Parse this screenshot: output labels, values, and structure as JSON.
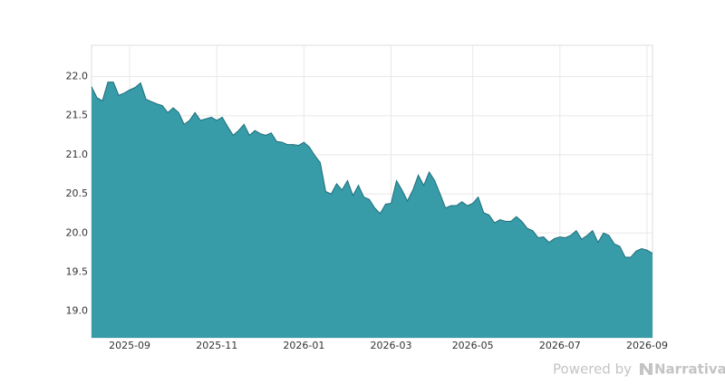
{
  "chart_data": {
    "type": "area",
    "categories": [
      null,
      null,
      null,
      null,
      null,
      null,
      null,
      "2025-09",
      null,
      null,
      null,
      null,
      null,
      null,
      null,
      null,
      null,
      null,
      null,
      null,
      null,
      null,
      null,
      "2025-11",
      null,
      null,
      null,
      null,
      null,
      null,
      null,
      null,
      null,
      null,
      null,
      null,
      null,
      null,
      null,
      "2026-01",
      null,
      null,
      null,
      null,
      null,
      null,
      null,
      null,
      null,
      null,
      null,
      null,
      null,
      null,
      null,
      "2026-03",
      null,
      null,
      null,
      null,
      null,
      null,
      null,
      null,
      null,
      null,
      null,
      null,
      null,
      null,
      "2026-05",
      null,
      null,
      null,
      null,
      null,
      null,
      null,
      null,
      null,
      null,
      null,
      null,
      null,
      null,
      null,
      "2026-07",
      null,
      null,
      null,
      null,
      null,
      null,
      null,
      null,
      null,
      null,
      null,
      null,
      null,
      null,
      null,
      "2026-09",
      null
    ],
    "values": [
      21.87,
      21.73,
      21.69,
      21.93,
      21.93,
      21.76,
      21.79,
      21.83,
      21.86,
      21.92,
      21.71,
      21.68,
      21.65,
      21.63,
      21.54,
      21.6,
      21.54,
      21.39,
      21.44,
      21.54,
      21.44,
      21.46,
      21.48,
      21.44,
      21.48,
      21.36,
      21.25,
      21.31,
      21.39,
      21.25,
      21.31,
      21.27,
      21.25,
      21.28,
      21.17,
      21.16,
      21.13,
      21.13,
      21.12,
      21.16,
      21.1,
      20.99,
      20.9,
      20.53,
      20.5,
      20.63,
      20.55,
      20.67,
      20.48,
      20.61,
      20.46,
      20.43,
      20.32,
      20.25,
      20.37,
      20.38,
      20.67,
      20.55,
      20.41,
      20.55,
      20.74,
      20.61,
      20.78,
      20.67,
      20.5,
      20.32,
      20.35,
      20.35,
      20.4,
      20.35,
      20.38,
      20.46,
      20.26,
      20.23,
      20.13,
      20.17,
      20.15,
      20.15,
      20.21,
      20.15,
      20.06,
      20.03,
      19.94,
      19.95,
      19.88,
      19.93,
      19.95,
      19.94,
      19.97,
      20.03,
      19.92,
      19.97,
      20.03,
      19.88,
      20.0,
      19.97,
      19.86,
      19.83,
      19.69,
      19.69,
      19.77,
      19.8,
      19.78,
      19.74
    ],
    "color": "#379ba8",
    "line_color": "#1f6f7b",
    "ylim": [
      18.66,
      22.4
    ],
    "yticks": [
      {
        "value": 19,
        "label": "19.0"
      },
      19.5,
      {
        "value": 20,
        "label": "20.0"
      },
      20.5,
      {
        "value": 21,
        "label": "21.0"
      },
      21.5,
      {
        "value": 22,
        "label": "22.0"
      }
    ],
    "grid": true
  },
  "branding": {
    "prefix": "Powered by",
    "name": "Narrativa"
  }
}
